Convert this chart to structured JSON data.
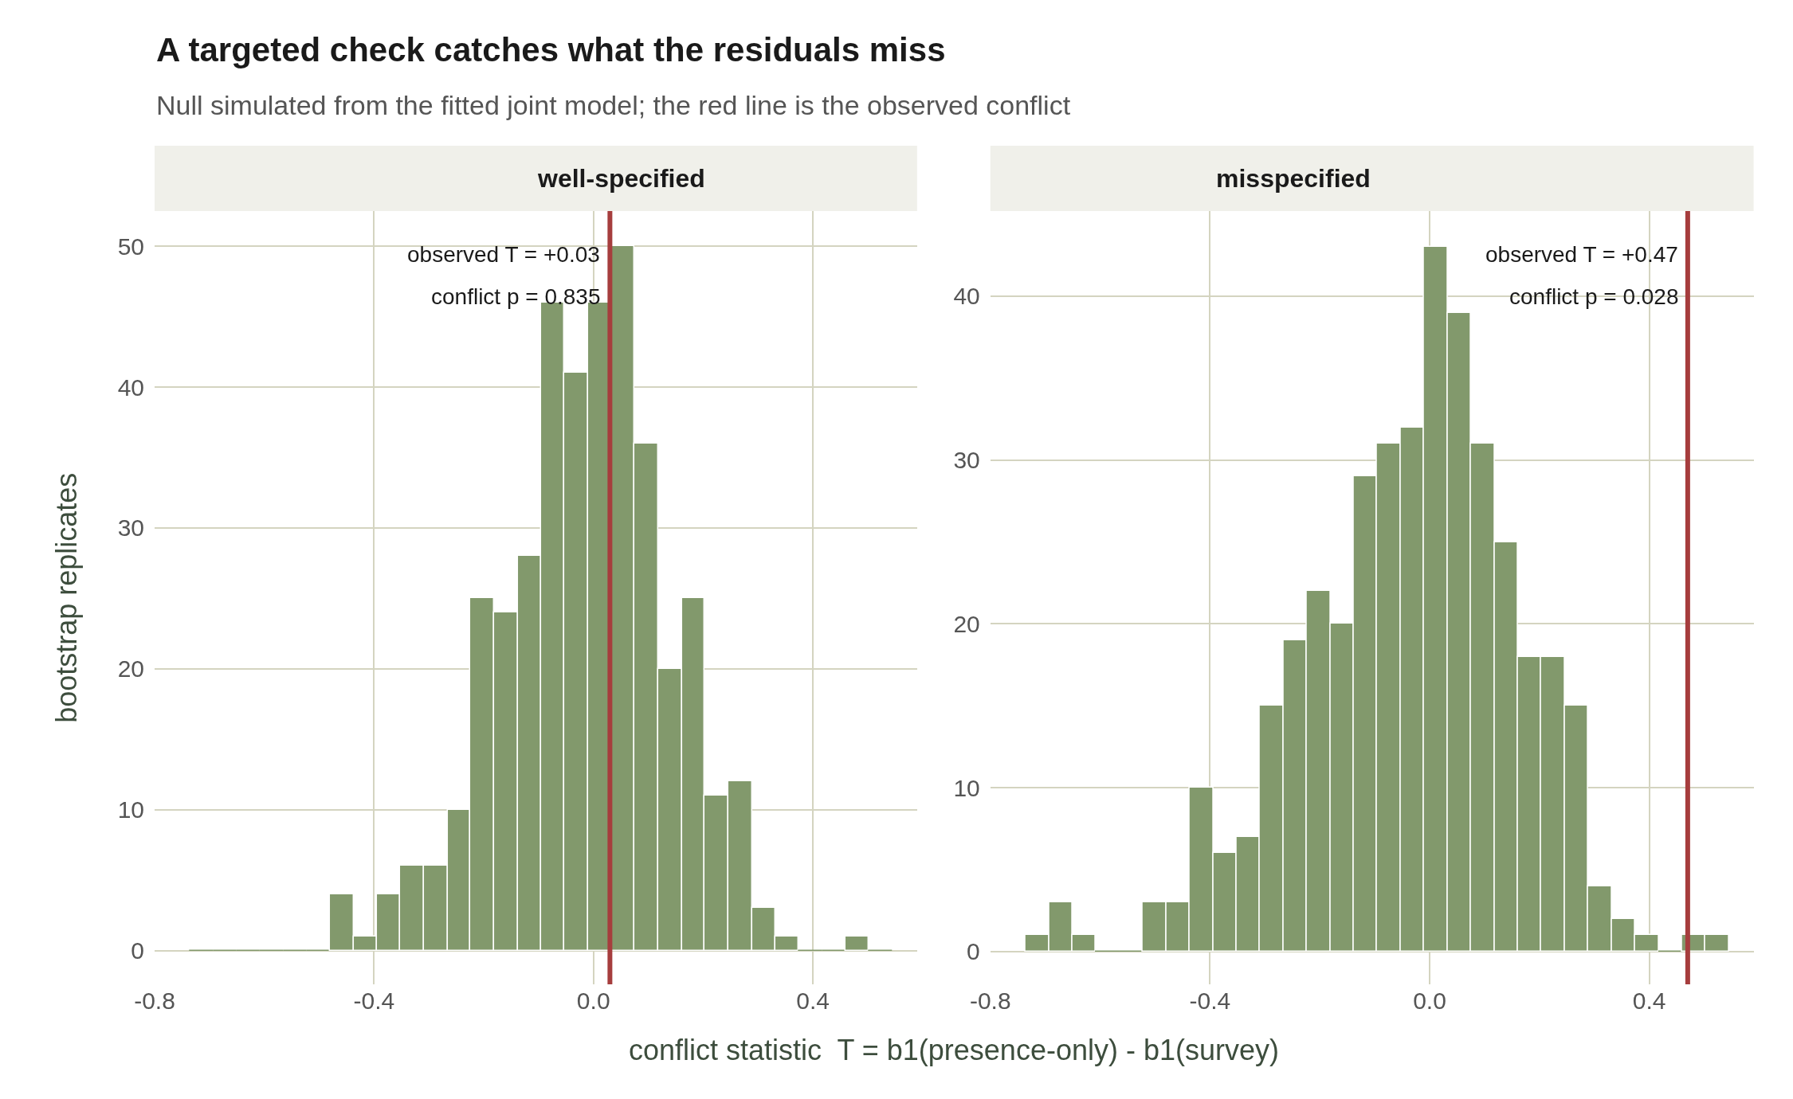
{
  "chart_data": [
    {
      "type": "histogram",
      "title": "well-specified",
      "xlabel": "conflict statistic  T = b1(presence-only) - b1(survey)",
      "ylabel": "bootstrap replicates",
      "bins": [
        -0.736,
        -0.693,
        -0.651,
        -0.608,
        -0.565,
        -0.523,
        -0.48,
        -0.437,
        -0.394,
        -0.352,
        -0.309,
        -0.266,
        -0.224,
        -0.181,
        -0.138,
        -0.096,
        -0.053,
        -0.01,
        0.033,
        0.075,
        0.118,
        0.161,
        0.203,
        0.246,
        0.289,
        0.332,
        0.374,
        0.417,
        0.46,
        0.502,
        0.545
      ],
      "values": [
        0,
        0,
        0,
        0,
        0,
        0,
        4,
        1,
        4,
        6,
        6,
        10,
        25,
        24,
        28,
        46,
        41,
        46,
        50,
        36,
        20,
        25,
        11,
        12,
        3,
        1,
        0,
        0,
        1,
        0
      ],
      "color": "#82996c",
      "xlim": [
        -0.8,
        0.59
      ],
      "xticks": [
        -0.8,
        -0.4,
        {
          "value": 0,
          "label": "0.0"
        },
        0.4
      ],
      "ylim": [
        -2.4,
        52.5
      ],
      "yticks": [
        0,
        10,
        20,
        30,
        40,
        50
      ],
      "grid": true,
      "ref_lines": [
        {
          "axis": "x",
          "value": 0.03,
          "color": "#a63d3d",
          "label": "observed T = +0.03"
        }
      ],
      "annotations": [
        "A targeted check catches what the residuals miss",
        "Null simulated from the fitted joint model; the red line is the observed conflict",
        "conflict p = 0.835"
      ]
    },
    {
      "type": "histogram",
      "title": "misspecified",
      "bins": [
        -0.736,
        -0.693,
        -0.651,
        -0.608,
        -0.565,
        -0.523,
        -0.48,
        -0.437,
        -0.394,
        -0.352,
        -0.309,
        -0.266,
        -0.224,
        -0.181,
        -0.138,
        -0.096,
        -0.053,
        -0.01,
        0.033,
        0.075,
        0.118,
        0.161,
        0.203,
        0.246,
        0.289,
        0.332,
        0.374,
        0.417,
        0.46,
        0.502,
        0.545
      ],
      "values": [
        1,
        3,
        1,
        0,
        0,
        3,
        3,
        10,
        6,
        7,
        15,
        19,
        22,
        20,
        29,
        31,
        32,
        43,
        39,
        31,
        25,
        18,
        18,
        15,
        4,
        2,
        1,
        0,
        1,
        1
      ],
      "color": "#82996c",
      "xlim": [
        -0.8,
        0.59
      ],
      "xticks": [
        -0.8,
        -0.4,
        {
          "value": 0,
          "label": "0.0"
        },
        0.4
      ],
      "ylim": [
        -2.0,
        45.2
      ],
      "yticks": [
        0,
        10,
        20,
        30,
        40
      ],
      "grid": true,
      "ref_lines": [
        {
          "axis": "x",
          "value": 0.47,
          "color": "#a63d3d",
          "label": "observed T = +0.47"
        }
      ],
      "annotations": [
        "conflict p = 0.028"
      ]
    }
  ]
}
